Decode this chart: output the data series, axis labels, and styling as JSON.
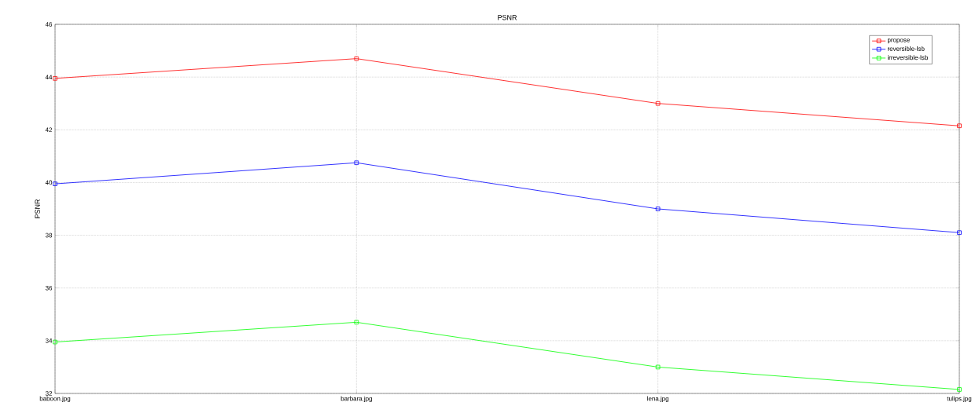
{
  "chart_data": {
    "type": "line",
    "title": "PSNR",
    "ylabel": "PSNR",
    "categories": [
      "baboon.jpg",
      "barbara.jpg",
      "lena.jpg",
      "tulips.jpg"
    ],
    "series": [
      {
        "name": "propose",
        "color": "#ff0000",
        "values": [
          43.95,
          44.7,
          43.0,
          42.15
        ]
      },
      {
        "name": "reversible-lsb",
        "color": "#0000ff",
        "values": [
          39.95,
          40.75,
          39.0,
          38.1
        ]
      },
      {
        "name": "irreversible-lsb",
        "color": "#00ff00",
        "values": [
          33.95,
          34.7,
          33.0,
          32.15
        ]
      }
    ],
    "ylim": [
      32,
      46
    ],
    "yticks": [
      32,
      34,
      36,
      38,
      40,
      42,
      44,
      46
    ],
    "grid": true,
    "legend": "top right",
    "marker": "square",
    "line_style": "solid"
  }
}
